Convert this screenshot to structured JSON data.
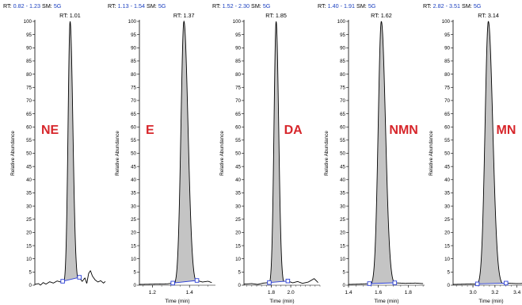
{
  "chart_data": [
    {
      "type": "line",
      "range_label": "RT:",
      "range_value": "0.82 - 1.23",
      "sm_label": "SM:",
      "sm_value": "5G",
      "apex_label": "RT: 1.01",
      "compound": "NE",
      "ylabel": "Relative Abundance",
      "xlabel": "",
      "ylim": [
        0,
        100
      ],
      "xlim": [
        0.82,
        1.23
      ],
      "x_ticks": [],
      "apex_rt": 1.01,
      "peak_start": 0.97,
      "peak_end": 1.06,
      "sigma_left": 0.011,
      "sigma_right": 0.015,
      "baseline": [
        {
          "x": 0.82,
          "y": 0.3
        },
        {
          "x": 0.84,
          "y": 0.6
        },
        {
          "x": 0.85,
          "y": 0.0
        },
        {
          "x": 0.865,
          "y": 1.0
        },
        {
          "x": 0.88,
          "y": 0.4
        },
        {
          "x": 0.9,
          "y": 1.3
        },
        {
          "x": 0.92,
          "y": 0.8
        },
        {
          "x": 0.94,
          "y": 1.6
        },
        {
          "x": 0.96,
          "y": 1.2
        },
        {
          "x": 0.97,
          "y": 1.5
        },
        {
          "x": 1.06,
          "y": 3.0
        },
        {
          "x": 1.075,
          "y": 1.4
        },
        {
          "x": 1.09,
          "y": 2.8
        },
        {
          "x": 1.1,
          "y": 0.6
        },
        {
          "x": 1.11,
          "y": 4.5
        },
        {
          "x": 1.12,
          "y": 5.5
        },
        {
          "x": 1.13,
          "y": 3.5
        },
        {
          "x": 1.145,
          "y": 2.0
        },
        {
          "x": 1.16,
          "y": 1.2
        },
        {
          "x": 1.175,
          "y": 1.7
        },
        {
          "x": 1.19,
          "y": 0.8
        },
        {
          "x": 1.2,
          "y": 1.4
        }
      ]
    },
    {
      "type": "line",
      "range_label": "RT:",
      "range_value": "1.13 - 1.54",
      "sm_label": "SM:",
      "sm_value": "5G",
      "apex_label": "RT: 1.37",
      "compound": "E",
      "ylabel": "Relative Abundance",
      "xlabel": "Time (min)",
      "ylim": [
        0,
        100
      ],
      "xlim": [
        1.13,
        1.54
      ],
      "x_ticks": [
        "1.2",
        "1.4"
      ],
      "apex_rt": 1.37,
      "peak_start": 1.31,
      "peak_end": 1.44,
      "sigma_left": 0.016,
      "sigma_right": 0.022,
      "baseline": [
        {
          "x": 1.13,
          "y": 0.3
        },
        {
          "x": 1.2,
          "y": 0.4
        },
        {
          "x": 1.28,
          "y": 0.5
        },
        {
          "x": 1.31,
          "y": 0.8
        },
        {
          "x": 1.44,
          "y": 1.8
        },
        {
          "x": 1.47,
          "y": 1.2
        },
        {
          "x": 1.5,
          "y": 1.5
        },
        {
          "x": 1.52,
          "y": 1.0
        }
      ]
    },
    {
      "type": "line",
      "range_label": "RT:",
      "range_value": "1.52 - 2.30",
      "sm_label": "SM:",
      "sm_value": "5G",
      "apex_label": "RT: 1.85",
      "compound": "DA",
      "ylabel": "Relative Abundance",
      "xlabel": "Time (min)",
      "ylim": [
        0,
        100
      ],
      "xlim": [
        1.52,
        2.3
      ],
      "x_ticks": [
        "1.8",
        "2.0"
      ],
      "apex_rt": 1.85,
      "peak_start": 1.78,
      "peak_end": 1.97,
      "sigma_left": 0.022,
      "sigma_right": 0.026,
      "baseline": [
        {
          "x": 1.52,
          "y": 0.4
        },
        {
          "x": 1.6,
          "y": 0.6
        },
        {
          "x": 1.66,
          "y": 0.3
        },
        {
          "x": 1.72,
          "y": 0.8
        },
        {
          "x": 1.78,
          "y": 1.0
        },
        {
          "x": 1.97,
          "y": 1.6
        },
        {
          "x": 2.02,
          "y": 0.9
        },
        {
          "x": 2.07,
          "y": 1.4
        },
        {
          "x": 2.12,
          "y": 0.7
        },
        {
          "x": 2.18,
          "y": 1.2
        },
        {
          "x": 2.24,
          "y": 2.5
        },
        {
          "x": 2.28,
          "y": 1.0
        }
      ]
    },
    {
      "type": "line",
      "range_label": "RT:",
      "range_value": "1.40 - 1.91",
      "sm_label": "SM:",
      "sm_value": "5G",
      "apex_label": "RT: 1.62",
      "compound": "NMN",
      "ylabel": "Relative Abundance",
      "xlabel": "Time (min)",
      "ylim": [
        0,
        100
      ],
      "xlim": [
        1.4,
        1.91
      ],
      "x_ticks": [
        "1.4",
        "1.6",
        "1.8"
      ],
      "apex_rt": 1.62,
      "peak_start": 1.54,
      "peak_end": 1.71,
      "sigma_left": 0.021,
      "sigma_right": 0.028,
      "baseline": [
        {
          "x": 1.4,
          "y": 0.3
        },
        {
          "x": 1.47,
          "y": 0.4
        },
        {
          "x": 1.54,
          "y": 0.6
        },
        {
          "x": 1.71,
          "y": 0.9
        },
        {
          "x": 1.78,
          "y": 0.7
        },
        {
          "x": 1.85,
          "y": 0.8
        },
        {
          "x": 1.9,
          "y": 0.6
        }
      ]
    },
    {
      "type": "line",
      "range_label": "RT:",
      "range_value": "2.82 - 3.51",
      "sm_label": "SM:",
      "sm_value": "5G",
      "apex_label": "RT: 3.14",
      "compound": "MN",
      "ylabel": "Relative Abundance",
      "xlabel": "Time (min)",
      "ylim": [
        0,
        100
      ],
      "xlim": [
        2.82,
        3.51
      ],
      "x_ticks": [
        "3.0",
        "3.2",
        "3.4"
      ],
      "apex_rt": 3.14,
      "peak_start": 3.04,
      "peak_end": 3.3,
      "sigma_left": 0.03,
      "sigma_right": 0.04,
      "baseline": [
        {
          "x": 2.82,
          "y": 0.3
        },
        {
          "x": 2.92,
          "y": 0.4
        },
        {
          "x": 3.04,
          "y": 0.5
        },
        {
          "x": 3.3,
          "y": 0.8
        },
        {
          "x": 3.4,
          "y": 0.6
        },
        {
          "x": 3.5,
          "y": 0.7
        }
      ]
    }
  ],
  "colors": {
    "compound_label": "#d7262b",
    "range_text": "#1a3fbf",
    "integration": "#2b3fd6",
    "peak_fill": "#c4c4c4",
    "trace": "#000000"
  }
}
